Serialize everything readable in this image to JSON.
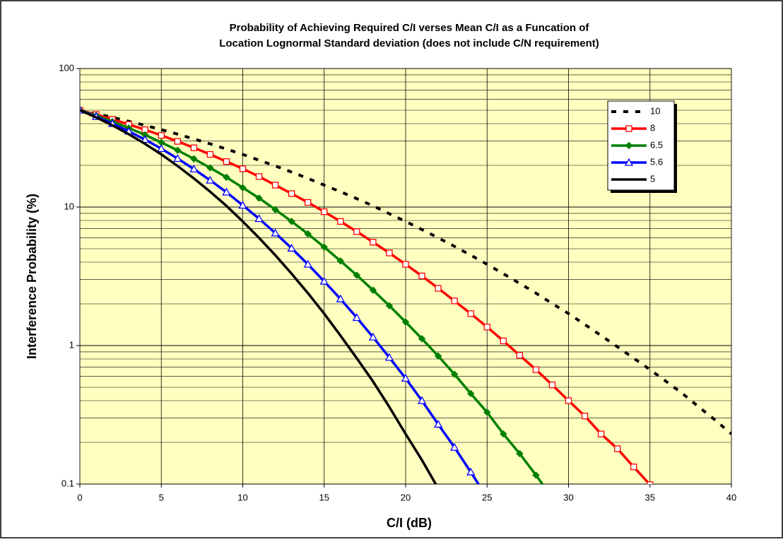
{
  "chart_data": {
    "type": "line",
    "title": [
      "Probability of Achieving Required C/I verses Mean C/I as a Funcation of",
      "Location Lognormal Standard deviation (does not include C/N requirement)"
    ],
    "x_label": "C/I (dB)",
    "y_label": "Interference Probability (%)",
    "x": [
      0,
      1,
      2,
      3,
      4,
      5,
      6,
      7,
      8,
      9,
      10,
      11,
      12,
      13,
      14,
      15,
      16,
      17,
      18,
      19,
      20,
      21,
      22,
      23,
      24,
      25,
      26,
      27,
      28,
      29,
      30,
      31,
      32,
      33,
      34,
      35,
      36,
      37,
      38,
      39,
      40
    ],
    "xlim": [
      0,
      40
    ],
    "xticks": [
      0,
      5,
      10,
      15,
      20,
      25,
      30,
      35,
      40
    ],
    "ylim": [
      0.1,
      100
    ],
    "yticks": [
      0.1,
      1,
      10,
      100
    ],
    "y_scale": "log",
    "grid": true,
    "legend": "upper right",
    "series": [
      {
        "name": "10",
        "color": "#000000",
        "dash": true,
        "marker": null,
        "values": [
          50,
          47.2,
          44.4,
          41.6,
          38.9,
          36.2,
          33.6,
          31.0,
          28.6,
          26.2,
          24.0,
          21.8,
          19.8,
          17.9,
          16.1,
          14.4,
          12.9,
          11.5,
          10.2,
          8.95,
          7.87,
          6.88,
          5.99,
          5.2,
          4.49,
          3.86,
          3.3,
          2.81,
          2.39,
          2.01,
          1.7,
          1.42,
          1.18,
          0.98,
          0.81,
          0.67,
          0.55,
          0.45,
          0.36,
          0.29,
          0.23
        ]
      },
      {
        "name": "8",
        "color": "#ff0000",
        "dash": false,
        "marker": "square",
        "values": [
          50,
          46.5,
          43.0,
          39.5,
          36.2,
          32.9,
          29.8,
          26.8,
          24.0,
          21.3,
          18.9,
          16.6,
          14.4,
          12.5,
          10.8,
          9.25,
          7.87,
          6.65,
          5.58,
          4.66,
          3.86,
          3.18,
          2.59,
          2.1,
          1.7,
          1.36,
          1.08,
          0.85,
          0.67,
          0.52,
          0.4,
          0.31,
          0.23,
          0.18,
          0.133,
          0.099,
          null,
          null,
          null,
          null,
          null
        ]
      },
      {
        "name": "6.5",
        "color": "#008000",
        "dash": false,
        "marker": "diamond",
        "values": [
          50,
          45.7,
          41.4,
          37.2,
          33.2,
          29.3,
          25.7,
          22.3,
          19.2,
          16.4,
          13.8,
          11.6,
          9.59,
          7.87,
          6.4,
          5.14,
          4.08,
          3.22,
          2.51,
          1.94,
          1.48,
          1.12,
          0.84,
          0.62,
          0.45,
          0.33,
          0.23,
          0.166,
          0.116,
          0.08,
          null,
          null,
          null,
          null,
          null,
          null,
          null,
          null,
          null,
          null,
          null
        ]
      },
      {
        "name": "5.6",
        "color": "#0000ff",
        "dash": false,
        "marker": "triangle",
        "values": [
          50,
          45.0,
          40.0,
          35.2,
          30.7,
          26.4,
          22.4,
          18.8,
          15.6,
          12.8,
          10.3,
          8.24,
          6.49,
          5.04,
          3.86,
          2.91,
          2.17,
          1.59,
          1.15,
          0.82,
          0.58,
          0.4,
          0.27,
          0.184,
          0.122,
          0.08,
          null,
          null,
          null,
          null,
          null,
          null,
          null,
          null,
          null,
          null,
          null,
          null,
          null,
          null,
          null
        ]
      },
      {
        "name": "5",
        "color": "#000000",
        "dash": false,
        "marker": null,
        "values": [
          50,
          44.4,
          38.9,
          33.6,
          28.6,
          24.0,
          19.8,
          16.1,
          12.9,
          10.2,
          7.87,
          5.99,
          4.49,
          3.3,
          2.39,
          1.7,
          1.18,
          0.81,
          0.55,
          0.36,
          0.23,
          0.149,
          0.093,
          null,
          null,
          null,
          null,
          null,
          null,
          null,
          null,
          null,
          null,
          null,
          null,
          null,
          null,
          null,
          null,
          null,
          null
        ]
      }
    ]
  }
}
